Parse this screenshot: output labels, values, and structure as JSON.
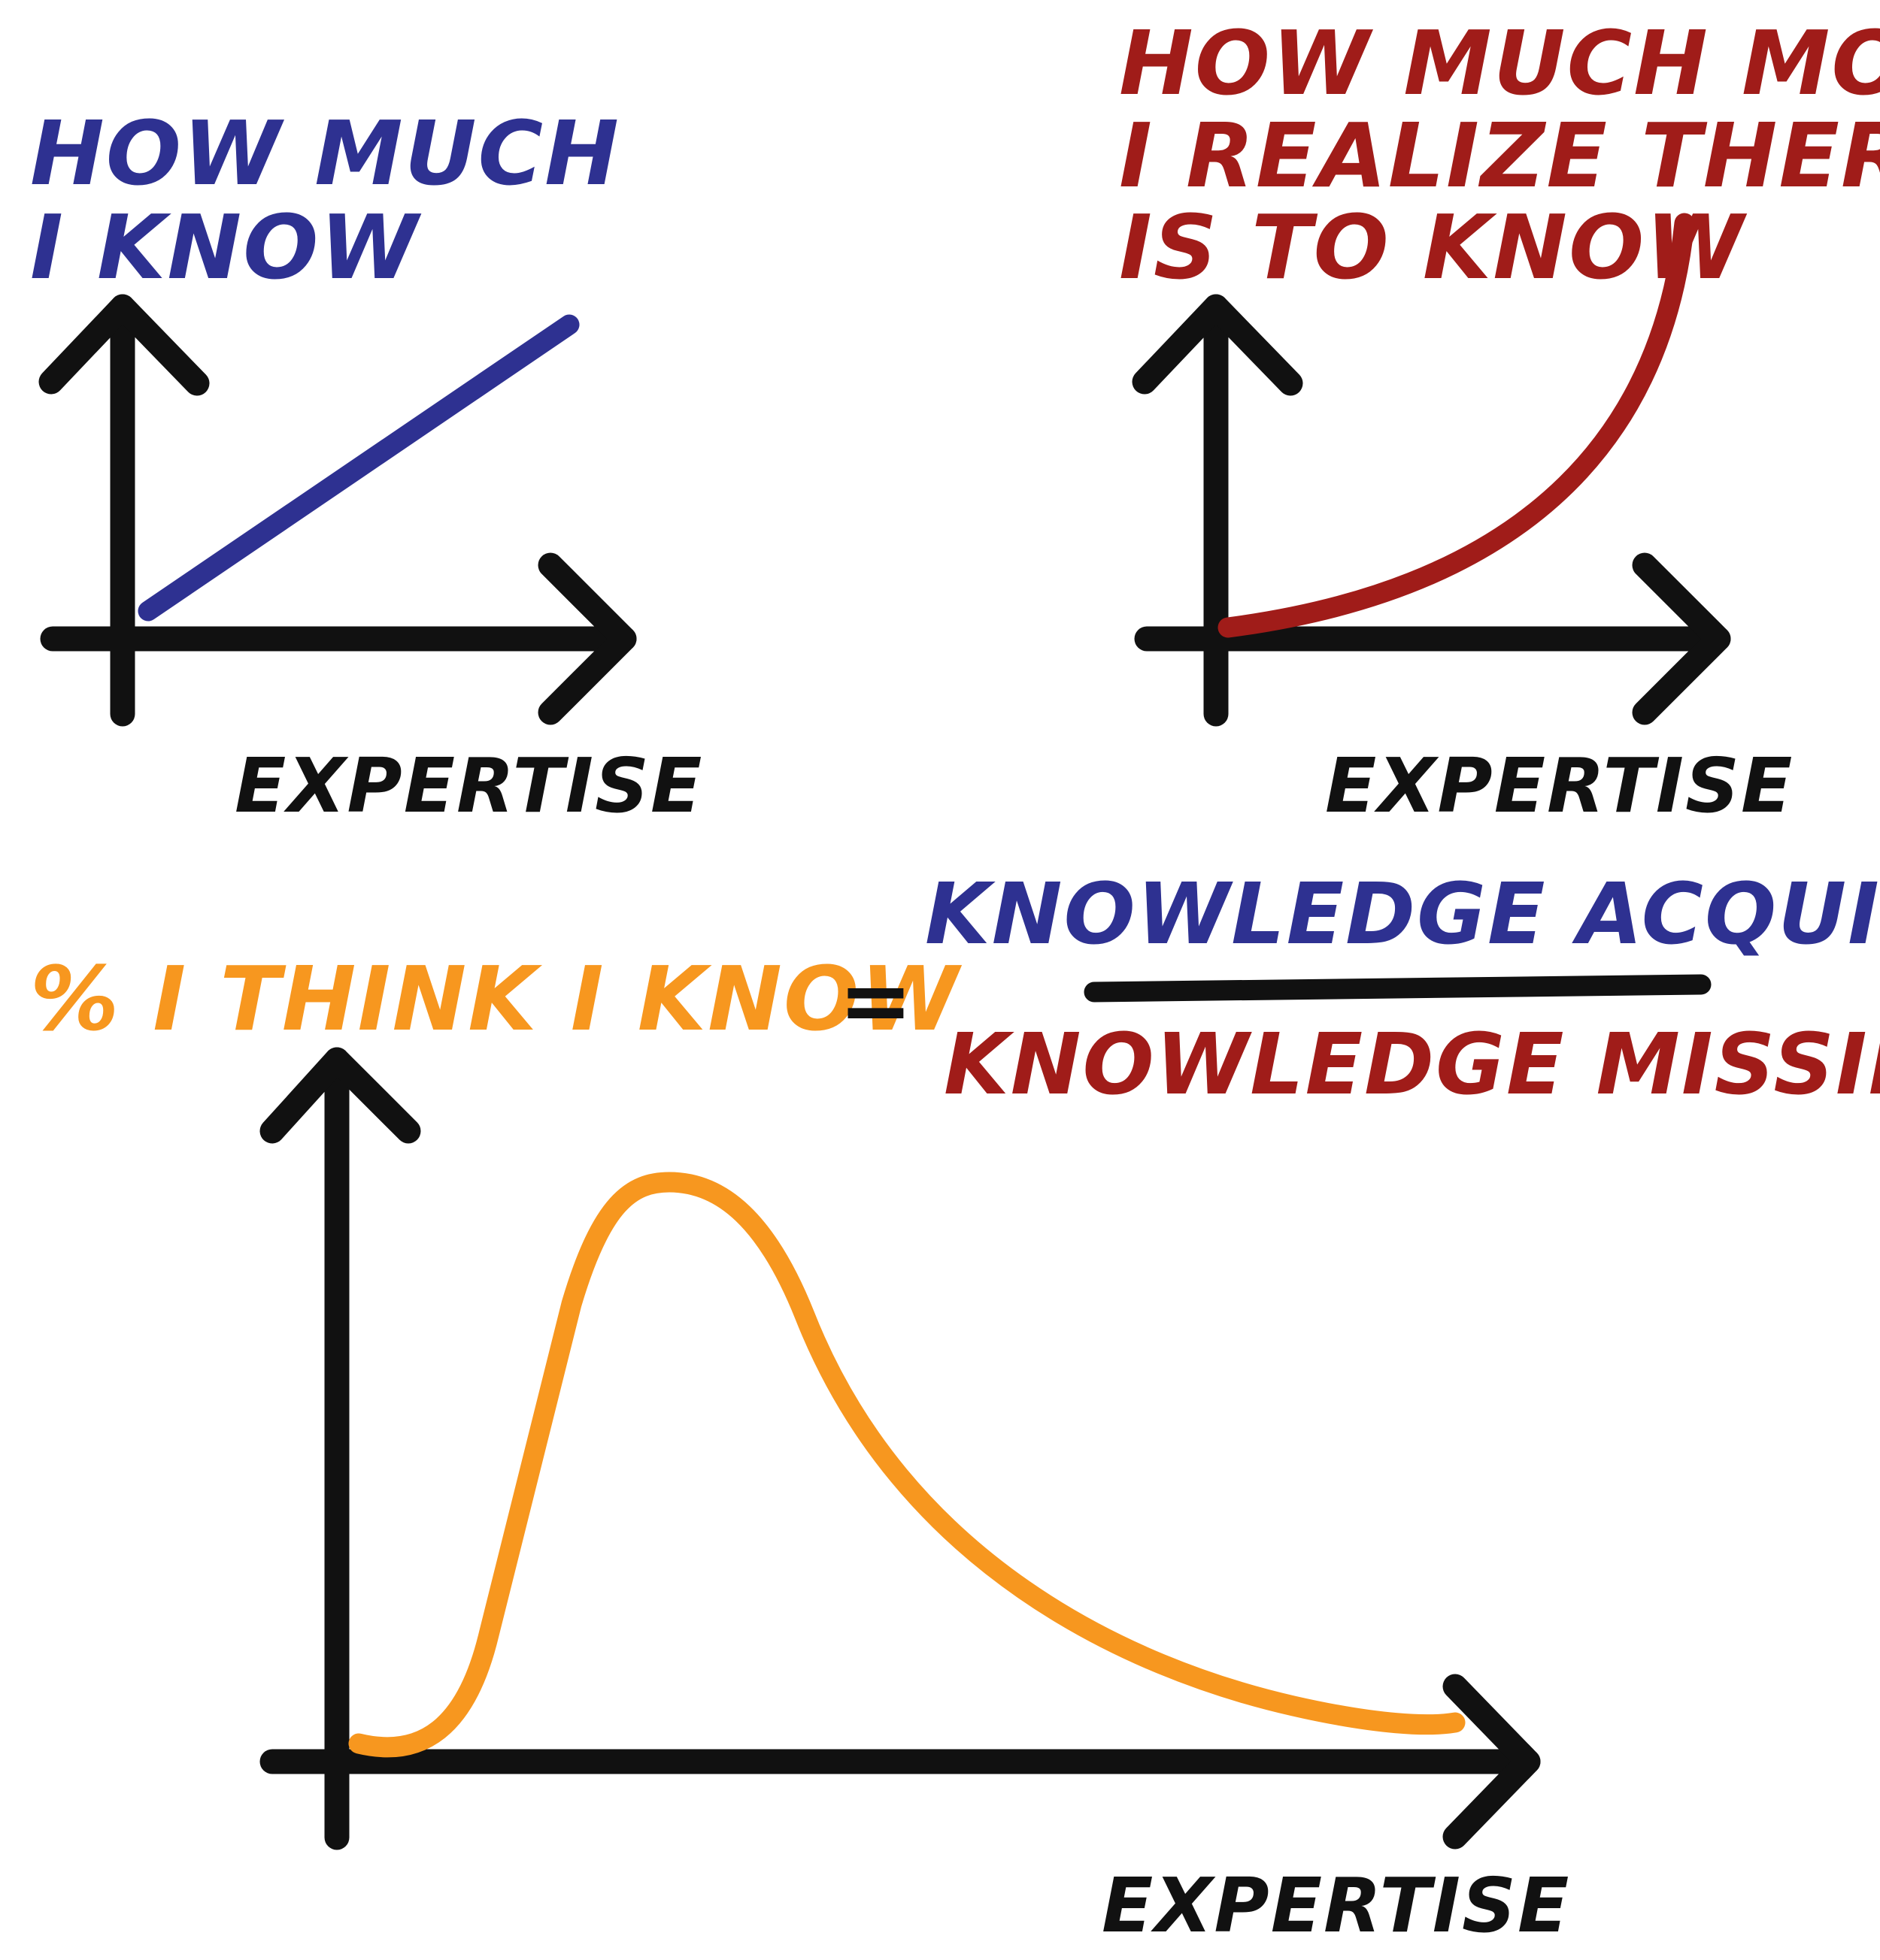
{
  "colors": {
    "axis": "#111111",
    "known": "#2e3191",
    "unknown": "#a01c19",
    "perceived": "#f7971f"
  },
  "top_left": {
    "title_line1": "HOW MUCH",
    "title_line2": "I KNOW",
    "xlabel": "EXPERTISE",
    "shape": "linear-increasing"
  },
  "top_right": {
    "title_line1": "HOW MUCH MORE",
    "title_line2": "I REALIZE THERE",
    "title_line3": "IS TO KNOW",
    "xlabel": "EXPERTISE",
    "shape": "exponential-increasing"
  },
  "bottom": {
    "ylabel": "% I THINK I KNOW",
    "equals": "=",
    "numerator": "KNOWLEDGE ACQUIRED",
    "denominator": "KNOWLEDGE MISSING",
    "xlabel": "EXPERTISE",
    "shape": "early-peak-then-decline"
  }
}
